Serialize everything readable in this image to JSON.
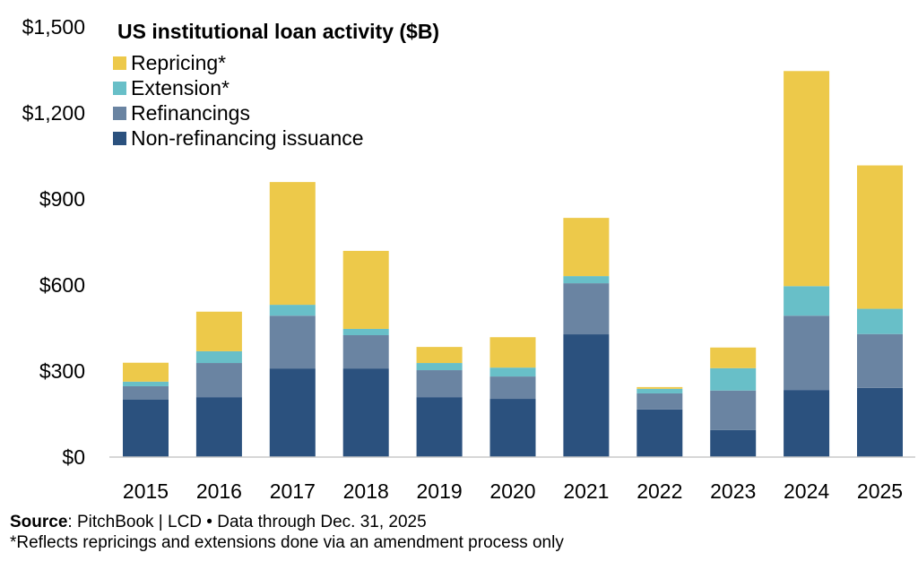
{
  "chart_data": {
    "type": "bar",
    "stacked": true,
    "title": "US institutional loan activity ($B)",
    "xlabel": "",
    "ylabel": "",
    "ylim": [
      0,
      1500
    ],
    "yticks": [
      0,
      300,
      600,
      900,
      1200,
      1500
    ],
    "ytick_labels": [
      "$0",
      "$300",
      "$600",
      "$900",
      "$1,200",
      "$1,500"
    ],
    "grid": false,
    "legend_position": "top-left",
    "categories": [
      "2015",
      "2016",
      "2017",
      "2018",
      "2019",
      "2020",
      "2021",
      "2022",
      "2023",
      "2024",
      "2025"
    ],
    "series": [
      {
        "name": "Non-refinancing issuance",
        "color": "#2b517e",
        "values": [
          200,
          209,
          309,
          309,
          209,
          203,
          428,
          166,
          94,
          234,
          241
        ]
      },
      {
        "name": "Refinancings",
        "color": "#6a84a2",
        "values": [
          47,
          119,
          184,
          116,
          94,
          78,
          178,
          56,
          138,
          259,
          188
        ]
      },
      {
        "name": "Extension*",
        "color": "#68bfc8",
        "values": [
          16,
          41,
          38,
          22,
          25,
          31,
          25,
          16,
          78,
          103,
          88
        ]
      },
      {
        "name": "Repricing*",
        "color": "#edc94a",
        "values": [
          66,
          138,
          428,
          272,
          56,
          106,
          203,
          6,
          72,
          750,
          500
        ]
      }
    ],
    "legend_order": [
      "Repricing*",
      "Extension*",
      "Refinancings",
      "Non-refinancing issuance"
    ]
  },
  "footer": {
    "source_label": "Source",
    "source_text": ": PitchBook | LCD • Data through Dec. 31, 2025",
    "note": "*Reflects repricings and extensions done via an amendment process only"
  }
}
